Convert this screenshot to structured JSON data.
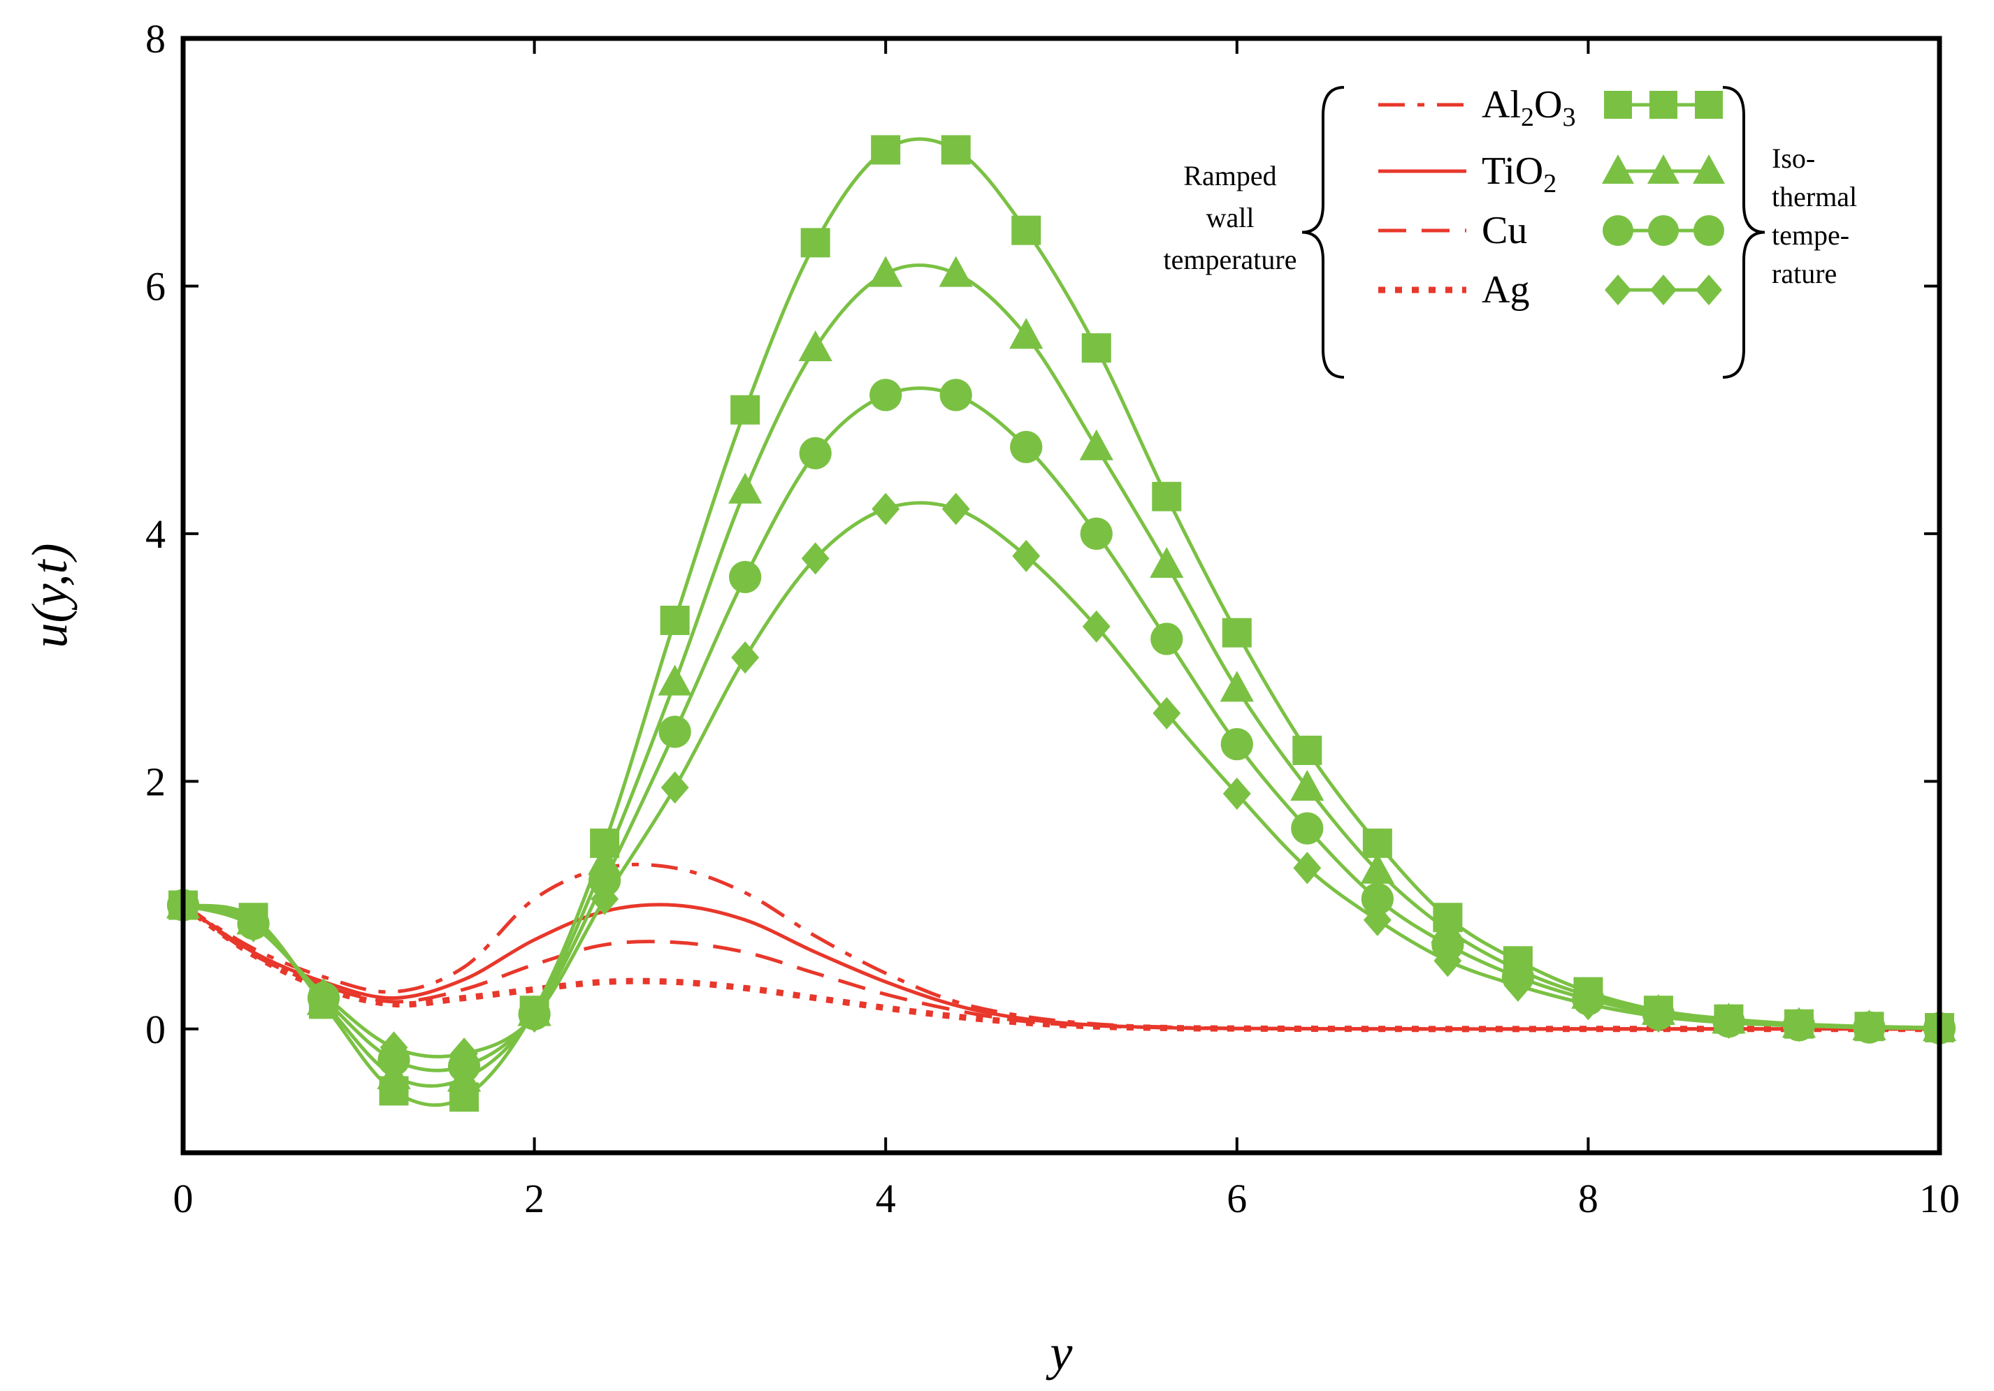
{
  "chart_data": {
    "type": "line",
    "title": "",
    "xlabel": "y",
    "ylabel": "u(y,t)",
    "xlim": [
      0,
      10
    ],
    "ylim": [
      -1,
      8
    ],
    "xticks": [
      "0",
      "2",
      "4",
      "6",
      "8",
      "10"
    ],
    "yticks": [
      "0",
      "2",
      "4",
      "6",
      "8"
    ],
    "legend": {
      "position": "top-right",
      "left_group_label": [
        "Ramped",
        "wall",
        "temperature"
      ],
      "right_group_label": [
        "Iso-",
        "thermal",
        "tempe-",
        "rature"
      ],
      "entries": [
        {
          "name": "Al2O3",
          "base": "Al",
          "sub1": "2",
          "mid": "O",
          "sub2": "3"
        },
        {
          "name": "TiO2",
          "base": "TiO",
          "sub1": "2",
          "mid": "",
          "sub2": ""
        },
        {
          "name": "Cu",
          "base": "Cu",
          "sub1": "",
          "mid": "",
          "sub2": ""
        },
        {
          "name": "Ag",
          "base": "Ag",
          "sub1": "",
          "mid": "",
          "sub2": ""
        }
      ]
    },
    "colors": {
      "ramped": "#e8372b",
      "isothermal": "#7ac143"
    },
    "isothermal_x": [
      0,
      0.4,
      0.8,
      1.2,
      1.6,
      2.0,
      2.4,
      2.8,
      3.2,
      3.6,
      4.0,
      4.4,
      4.8,
      5.2,
      5.6,
      6.0,
      6.4,
      6.8,
      7.2,
      7.6,
      8.0,
      8.4,
      8.8,
      9.2,
      9.6,
      10.0
    ],
    "ramped_x": [
      0,
      0.4,
      0.8,
      1.2,
      1.6,
      2.0,
      2.4,
      2.8,
      3.2,
      3.6,
      4.0,
      4.4,
      4.8,
      5.2,
      5.6,
      6.0,
      7.0,
      8.0,
      9.0,
      10.0
    ],
    "series": [
      {
        "name": "Al2O3",
        "group": "isothermal",
        "marker": "square",
        "values": [
          1.0,
          0.9,
          0.2,
          -0.5,
          -0.55,
          0.15,
          1.5,
          3.3,
          5.0,
          6.35,
          7.1,
          7.1,
          6.45,
          5.5,
          4.3,
          3.2,
          2.25,
          1.5,
          0.9,
          0.55,
          0.3,
          0.15,
          0.08,
          0.04,
          0.02,
          0.01
        ]
      },
      {
        "name": "TiO2",
        "group": "isothermal",
        "marker": "triangle",
        "values": [
          1.0,
          0.87,
          0.22,
          -0.38,
          -0.4,
          0.13,
          1.35,
          2.8,
          4.35,
          5.5,
          6.1,
          6.1,
          5.6,
          4.7,
          3.75,
          2.75,
          1.95,
          1.28,
          0.8,
          0.48,
          0.27,
          0.14,
          0.07,
          0.035,
          0.015,
          0.008
        ]
      },
      {
        "name": "Cu",
        "group": "isothermal",
        "marker": "circle",
        "values": [
          1.0,
          0.85,
          0.25,
          -0.25,
          -0.3,
          0.12,
          1.2,
          2.4,
          3.65,
          4.65,
          5.12,
          5.12,
          4.7,
          4.0,
          3.15,
          2.3,
          1.62,
          1.05,
          0.68,
          0.42,
          0.24,
          0.12,
          0.06,
          0.03,
          0.012,
          0.006
        ]
      },
      {
        "name": "Ag",
        "group": "isothermal",
        "marker": "diamond",
        "values": [
          1.0,
          0.83,
          0.28,
          -0.15,
          -0.2,
          0.1,
          1.05,
          1.95,
          3.0,
          3.8,
          4.2,
          4.2,
          3.82,
          3.25,
          2.55,
          1.9,
          1.3,
          0.88,
          0.55,
          0.35,
          0.2,
          0.1,
          0.05,
          0.025,
          0.01,
          0.005
        ]
      },
      {
        "name": "Al2O3",
        "group": "ramped",
        "dash": "dashdot",
        "values": [
          1.0,
          0.65,
          0.42,
          0.3,
          0.5,
          1.05,
          1.3,
          1.3,
          1.1,
          0.75,
          0.45,
          0.22,
          0.1,
          0.04,
          0.015,
          0.005,
          0.0,
          0.0,
          0.0,
          0.0
        ]
      },
      {
        "name": "TiO2",
        "group": "ramped",
        "dash": "solid",
        "values": [
          1.0,
          0.62,
          0.38,
          0.25,
          0.4,
          0.72,
          0.95,
          1.0,
          0.88,
          0.62,
          0.38,
          0.19,
          0.08,
          0.03,
          0.01,
          0.004,
          0.0,
          0.0,
          0.0,
          0.0
        ]
      },
      {
        "name": "Cu",
        "group": "ramped",
        "dash": "dashed",
        "values": [
          1.0,
          0.6,
          0.35,
          0.22,
          0.32,
          0.52,
          0.68,
          0.7,
          0.62,
          0.45,
          0.28,
          0.15,
          0.06,
          0.025,
          0.01,
          0.003,
          0.0,
          0.0,
          0.0,
          0.0
        ]
      },
      {
        "name": "Ag",
        "group": "ramped",
        "dash": "dotted",
        "values": [
          1.0,
          0.6,
          0.33,
          0.2,
          0.25,
          0.32,
          0.38,
          0.38,
          0.33,
          0.25,
          0.17,
          0.1,
          0.05,
          0.02,
          0.008,
          0.003,
          0.0,
          0.0,
          0.0,
          0.0
        ]
      }
    ]
  }
}
